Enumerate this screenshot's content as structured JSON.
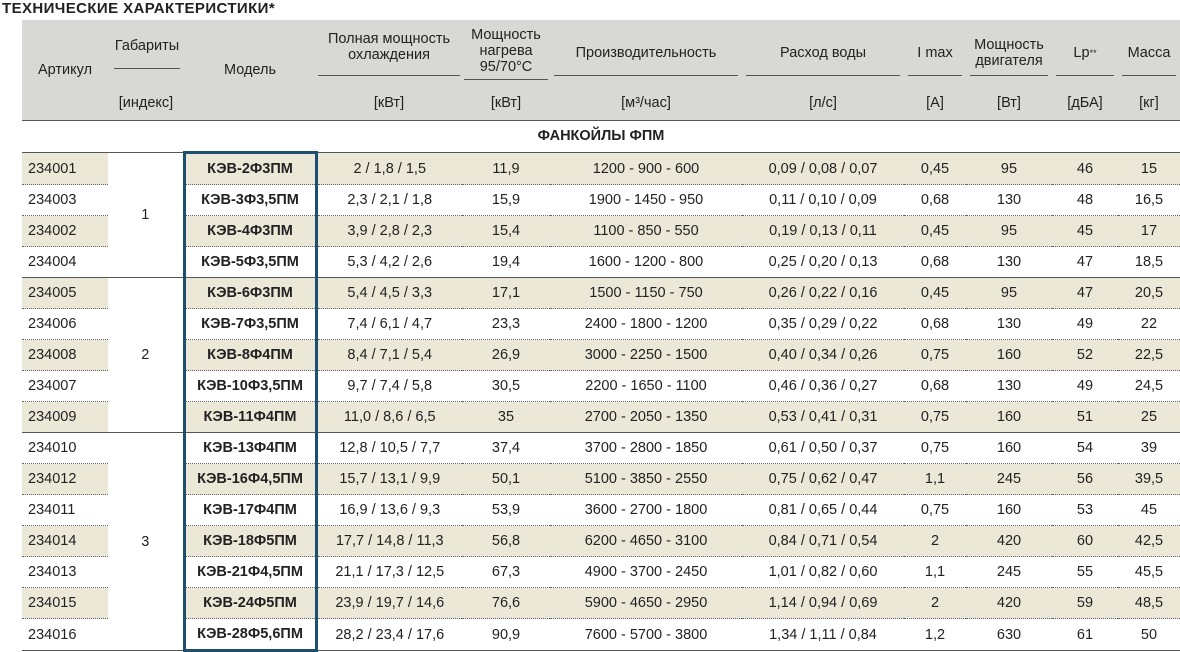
{
  "title": "ТЕХНИЧЕСКИЕ ХАРАКТЕРИСТИКИ*",
  "headers": {
    "article": "Артикул",
    "size": "Габариты",
    "size_unit": "[индекс]",
    "model": "Модель",
    "cooling": "Полная мощность охлаждения",
    "cooling_unit": "[кВт]",
    "heating_l1": "Мощность",
    "heating_l2": "нагрева",
    "heating_l3": "95/70°С",
    "heating_unit": "[кВт]",
    "airflow": "Производительность",
    "airflow_unit": "[м³/час]",
    "water": "Расход воды",
    "water_unit": "[л/с]",
    "imax": "I max",
    "imax_unit": "[А]",
    "motor": "Мощность двигателя",
    "motor_unit": "[Вт]",
    "lp": "Lp",
    "lp_sup": "**",
    "lp_unit": "[дБА]",
    "mass": "Масса",
    "mass_unit": "[кг]"
  },
  "section": "ФАНКОЙЛЫ ФПМ",
  "groups": [
    {
      "size": "1",
      "rows": [
        {
          "article": "234001",
          "model": "КЭВ-2Ф3ПМ",
          "cooling": "2 / 1,8 / 1,5",
          "heating": "11,9",
          "airflow": "1200 - 900 - 600",
          "water": "0,09 / 0,08 / 0,07",
          "imax": "0,45",
          "motor": "95",
          "lp": "46",
          "mass": "15"
        },
        {
          "article": "234003",
          "model": "КЭВ-3Ф3,5ПМ",
          "cooling": "2,3 / 2,1 / 1,8",
          "heating": "15,9",
          "airflow": "1900 - 1450 - 950",
          "water": "0,11 / 0,10 / 0,09",
          "imax": "0,68",
          "motor": "130",
          "lp": "48",
          "mass": "16,5"
        },
        {
          "article": "234002",
          "model": "КЭВ-4Ф3ПМ",
          "cooling": "3,9 / 2,8 / 2,3",
          "heating": "15,4",
          "airflow": "1100 - 850 - 550",
          "water": "0,19 / 0,13 / 0,11",
          "imax": "0,45",
          "motor": "95",
          "lp": "45",
          "mass": "17"
        },
        {
          "article": "234004",
          "model": "КЭВ-5Ф3,5ПМ",
          "cooling": "5,3 / 4,2 / 2,6",
          "heating": "19,4",
          "airflow": "1600 - 1200 - 800",
          "water": "0,25 / 0,20 / 0,13",
          "imax": "0,68",
          "motor": "130",
          "lp": "47",
          "mass": "18,5"
        }
      ]
    },
    {
      "size": "2",
      "rows": [
        {
          "article": "234005",
          "model": "КЭВ-6Ф3ПМ",
          "cooling": "5,4 / 4,5 / 3,3",
          "heating": "17,1",
          "airflow": "1500 - 1150 - 750",
          "water": "0,26 / 0,22 / 0,16",
          "imax": "0,45",
          "motor": "95",
          "lp": "47",
          "mass": "20,5"
        },
        {
          "article": "234006",
          "model": "КЭВ-7Ф3,5ПМ",
          "cooling": "7,4 / 6,1 / 4,7",
          "heating": "23,3",
          "airflow": "2400 - 1800 - 1200",
          "water": "0,35 / 0,29 / 0,22",
          "imax": "0,68",
          "motor": "130",
          "lp": "49",
          "mass": "22"
        },
        {
          "article": "234008",
          "model": "КЭВ-8Ф4ПМ",
          "cooling": "8,4 / 7,1 / 5,4",
          "heating": "26,9",
          "airflow": "3000 - 2250 - 1500",
          "water": "0,40 / 0,34 / 0,26",
          "imax": "0,75",
          "motor": "160",
          "lp": "52",
          "mass": "22,5"
        },
        {
          "article": "234007",
          "model": "КЭВ-10Ф3,5ПМ",
          "cooling": "9,7 / 7,4 / 5,8",
          "heating": "30,5",
          "airflow": "2200 - 1650 - 1100",
          "water": "0,46 / 0,36 / 0,27",
          "imax": "0,68",
          "motor": "130",
          "lp": "49",
          "mass": "24,5"
        },
        {
          "article": "234009",
          "model": "КЭВ-11Ф4ПМ",
          "cooling": "11,0 / 8,6 / 6,5",
          "heating": "35",
          "airflow": "2700 - 2050 - 1350",
          "water": "0,53 / 0,41 / 0,31",
          "imax": "0,75",
          "motor": "160",
          "lp": "51",
          "mass": "25"
        }
      ]
    },
    {
      "size": "3",
      "rows": [
        {
          "article": "234010",
          "model": "КЭВ-13Ф4ПМ",
          "cooling": "12,8 / 10,5 / 7,7",
          "heating": "37,4",
          "airflow": "3700 - 2800 - 1850",
          "water": "0,61 / 0,50 / 0,37",
          "imax": "0,75",
          "motor": "160",
          "lp": "54",
          "mass": "39"
        },
        {
          "article": "234012",
          "model": "КЭВ-16Ф4,5ПМ",
          "cooling": "15,7 / 13,1 / 9,9",
          "heating": "50,1",
          "airflow": "5100 - 3850 - 2550",
          "water": "0,75 / 0,62 / 0,47",
          "imax": "1,1",
          "motor": "245",
          "lp": "56",
          "mass": "39,5"
        },
        {
          "article": "234011",
          "model": "КЭВ-17Ф4ПМ",
          "cooling": "16,9 / 13,6 / 9,3",
          "heating": "53,9",
          "airflow": "3600 - 2700 - 1800",
          "water": "0,81 / 0,65 / 0,44",
          "imax": "0,75",
          "motor": "160",
          "lp": "53",
          "mass": "45"
        },
        {
          "article": "234014",
          "model": "КЭВ-18Ф5ПМ",
          "cooling": "17,7 / 14,8 / 11,3",
          "heating": "56,8",
          "airflow": "6200 - 4650 - 3100",
          "water": "0,84 / 0,71 / 0,54",
          "imax": "2",
          "motor": "420",
          "lp": "60",
          "mass": "42,5"
        },
        {
          "article": "234013",
          "model": "КЭВ-21Ф4,5ПМ",
          "cooling": "21,1 / 17,3 / 12,5",
          "heating": "67,3",
          "airflow": "4900 - 3700 - 2450",
          "water": "1,01 / 0,82 / 0,60",
          "imax": "1,1",
          "motor": "245",
          "lp": "55",
          "mass": "45,5"
        },
        {
          "article": "234015",
          "model": "КЭВ-24Ф5ПМ",
          "cooling": "23,9 / 19,7 / 14,6",
          "heating": "76,6",
          "airflow": "5900 - 4650 - 2950",
          "water": "1,14 / 0,94 / 0,69",
          "imax": "2",
          "motor": "420",
          "lp": "59",
          "mass": "48,5"
        },
        {
          "article": "234016",
          "model": "КЭВ-28Ф5,6ПМ",
          "cooling": "28,2 / 23,4 / 17,6",
          "heating": "90,9",
          "airflow": "7600 - 5700 - 3800",
          "water": "1,34 / 1,11 / 0,84",
          "imax": "1,2",
          "motor": "630",
          "lp": "61",
          "mass": "50"
        }
      ]
    }
  ]
}
